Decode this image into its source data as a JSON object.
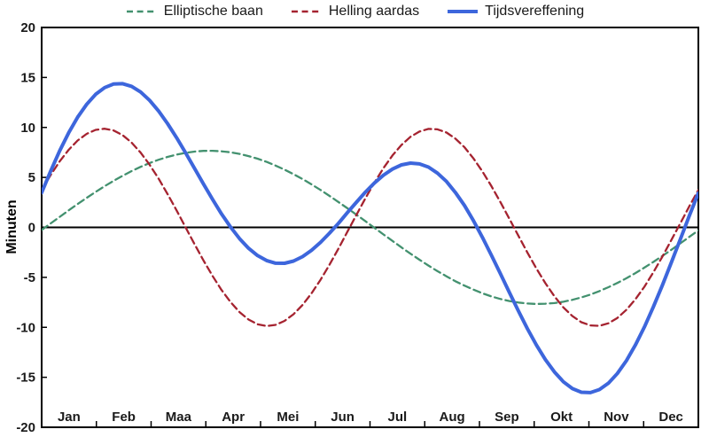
{
  "chart_data": {
    "type": "line",
    "title": "",
    "ylabel": "Minuten",
    "xlabel": "",
    "ylim": [
      -20,
      20
    ],
    "y_ticks": [
      20,
      15,
      10,
      5,
      0,
      -5,
      -10,
      -15,
      -20
    ],
    "x_categories": [
      "Jan",
      "Feb",
      "Maa",
      "Apr",
      "Mei",
      "Jun",
      "Jul",
      "Aug",
      "Sep",
      "Okt",
      "Nov",
      "Dec"
    ],
    "x_unit": "day_of_year",
    "x_range_days": [
      1,
      366
    ],
    "zero_line": true,
    "grid": false,
    "legend_position": "top",
    "x_days": [
      1,
      6,
      11,
      16,
      21,
      26,
      31,
      36,
      41,
      46,
      51,
      56,
      61,
      66,
      71,
      76,
      81,
      86,
      91,
      96,
      101,
      106,
      111,
      116,
      121,
      126,
      131,
      136,
      141,
      146,
      151,
      156,
      161,
      166,
      171,
      176,
      181,
      186,
      191,
      196,
      201,
      206,
      211,
      216,
      221,
      226,
      231,
      236,
      241,
      246,
      251,
      256,
      261,
      266,
      271,
      276,
      281,
      286,
      291,
      296,
      301,
      306,
      311,
      316,
      321,
      326,
      331,
      336,
      341,
      346,
      351,
      356,
      361,
      366
    ],
    "series": [
      {
        "name": "Elliptische baan",
        "color": "#43916F",
        "style": "dashed",
        "values": [
          -0.26,
          0.4,
          1.05,
          1.7,
          2.33,
          2.95,
          3.55,
          4.12,
          4.66,
          5.16,
          5.63,
          6.06,
          6.44,
          6.77,
          7.05,
          7.28,
          7.46,
          7.58,
          7.65,
          7.66,
          7.61,
          7.51,
          7.35,
          7.13,
          6.87,
          6.55,
          6.18,
          5.77,
          5.32,
          4.83,
          4.3,
          3.74,
          3.15,
          2.53,
          1.91,
          1.26,
          0.61,
          -0.05,
          -0.71,
          -1.36,
          -2.0,
          -2.63,
          -3.24,
          -3.82,
          -4.38,
          -4.9,
          -5.39,
          -5.83,
          -6.23,
          -6.6,
          -6.91,
          -7.17,
          -7.37,
          -7.52,
          -7.62,
          -7.66,
          -7.64,
          -7.57,
          -7.44,
          -7.25,
          -7.01,
          -6.72,
          -6.38,
          -5.99,
          -5.56,
          -5.09,
          -4.58,
          -4.03,
          -3.46,
          -2.86,
          -2.24,
          -1.6,
          -0.95,
          -0.3
        ]
      },
      {
        "name": "Helling aardas",
        "color": "#A52330",
        "style": "dashed",
        "values": [
          3.73,
          5.24,
          6.6,
          7.76,
          8.69,
          9.36,
          9.76,
          9.87,
          9.69,
          9.22,
          8.48,
          7.48,
          6.27,
          4.87,
          3.33,
          1.69,
          0.0,
          -1.69,
          -3.33,
          -4.87,
          -6.27,
          -7.48,
          -8.48,
          -9.22,
          -9.69,
          -9.87,
          -9.76,
          -9.36,
          -8.69,
          -7.76,
          -6.6,
          -5.24,
          -3.73,
          -2.11,
          -0.42,
          1.27,
          2.93,
          4.5,
          5.93,
          7.2,
          8.25,
          9.06,
          9.59,
          9.85,
          9.81,
          9.49,
          8.88,
          8.02,
          6.9,
          5.59,
          4.12,
          2.52,
          0.85,
          -0.85,
          -2.52,
          -4.12,
          -5.59,
          -6.9,
          -8.01,
          -8.88,
          -9.49,
          -9.81,
          -9.85,
          -9.6,
          -9.06,
          -8.25,
          -7.2,
          -5.94,
          -4.5,
          -2.93,
          -1.27,
          0.42,
          2.11,
          3.73
        ]
      },
      {
        "name": "Tijdsvereffening",
        "color": "#3D66DC",
        "style": "solid",
        "values": [
          3.47,
          5.64,
          7.65,
          9.46,
          11.02,
          12.31,
          13.31,
          13.99,
          14.35,
          14.38,
          14.11,
          13.54,
          12.71,
          11.64,
          10.38,
          8.97,
          7.46,
          5.89,
          4.32,
          2.79,
          1.34,
          0.03,
          -1.13,
          -2.09,
          -2.82,
          -3.32,
          -3.58,
          -3.59,
          -3.37,
          -2.93,
          -2.3,
          -1.5,
          -0.58,
          0.42,
          1.49,
          2.53,
          3.54,
          4.45,
          5.22,
          5.84,
          6.25,
          6.43,
          6.35,
          6.03,
          5.43,
          4.59,
          3.49,
          2.19,
          0.67,
          -1.01,
          -2.79,
          -4.65,
          -6.52,
          -8.37,
          -10.14,
          -11.78,
          -13.23,
          -14.47,
          -15.45,
          -16.13,
          -16.5,
          -16.53,
          -16.23,
          -15.59,
          -14.62,
          -13.34,
          -11.78,
          -9.97,
          -7.96,
          -5.79,
          -3.51,
          -1.18,
          1.16,
          3.43
        ]
      }
    ]
  },
  "colors": {
    "axis": "#000000",
    "label_text": "#1A1A1A",
    "background": "#FFFFFF"
  }
}
